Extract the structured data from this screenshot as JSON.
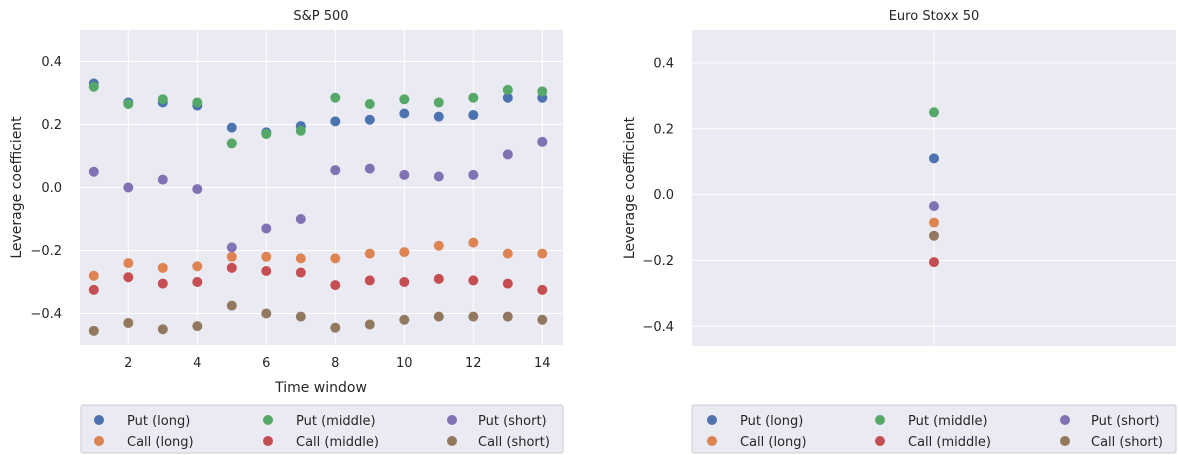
{
  "chart_data": [
    {
      "type": "scatter",
      "title": "S&P 500",
      "xlabel": "Time window",
      "ylabel": "Leverage coefficient",
      "xlim": [
        0.6,
        14.6
      ],
      "ylim": [
        -0.5,
        0.5
      ],
      "xticks": [
        2,
        4,
        6,
        8,
        10,
        12,
        14
      ],
      "yticks": [
        -0.4,
        -0.2,
        0.0,
        0.2,
        0.4
      ],
      "ytick_labels": [
        "−0.4",
        "−0.2",
        "0.0",
        "0.2",
        "0.4"
      ],
      "grid": true,
      "legend_position": "below",
      "legend_columns": 3,
      "x": [
        1,
        2,
        3,
        4,
        5,
        6,
        7,
        8,
        9,
        10,
        11,
        12,
        13,
        14
      ],
      "series": [
        {
          "name": "Put (long)",
          "color": "#4c72b0",
          "values": [
            0.33,
            0.27,
            0.27,
            0.26,
            0.19,
            0.175,
            0.195,
            0.21,
            0.215,
            0.235,
            0.225,
            0.23,
            0.285,
            0.285
          ]
        },
        {
          "name": "Call (long)",
          "color": "#dd8452",
          "values": [
            -0.28,
            -0.24,
            -0.255,
            -0.25,
            -0.22,
            -0.22,
            -0.225,
            -0.225,
            -0.21,
            -0.205,
            -0.185,
            -0.175,
            -0.21,
            -0.21
          ]
        },
        {
          "name": "Put (middle)",
          "color": "#55a868",
          "values": [
            0.32,
            0.265,
            0.28,
            0.27,
            0.14,
            0.17,
            0.18,
            0.285,
            0.265,
            0.28,
            0.27,
            0.285,
            0.31,
            0.305
          ]
        },
        {
          "name": "Call (middle)",
          "color": "#c44e52",
          "values": [
            -0.325,
            -0.285,
            -0.305,
            -0.3,
            -0.255,
            -0.265,
            -0.27,
            -0.31,
            -0.295,
            -0.3,
            -0.29,
            -0.295,
            -0.305,
            -0.325
          ]
        },
        {
          "name": "Put (short)",
          "color": "#8172b3",
          "values": [
            0.05,
            0.0,
            0.025,
            -0.005,
            -0.19,
            -0.13,
            -0.1,
            0.055,
            0.06,
            0.04,
            0.035,
            0.04,
            0.105,
            0.145
          ]
        },
        {
          "name": "Call (short)",
          "color": "#937860",
          "values": [
            -0.455,
            -0.43,
            -0.45,
            -0.44,
            -0.375,
            -0.4,
            -0.41,
            -0.445,
            -0.435,
            -0.42,
            -0.41,
            -0.41,
            -0.41,
            -0.42
          ]
        }
      ]
    },
    {
      "type": "scatter",
      "title": "Euro Stoxx 50",
      "xlabel": "",
      "ylabel": "Leverage coefficient",
      "ylim": [
        -0.46,
        0.5
      ],
      "yticks": [
        -0.4,
        -0.2,
        0.0,
        0.2,
        0.4
      ],
      "ytick_labels": [
        "−0.4",
        "−0.2",
        "0.0",
        "0.2",
        "0.4"
      ],
      "xticks": [],
      "grid": true,
      "legend_position": "below",
      "legend_columns": 3,
      "x": [
        0
      ],
      "series": [
        {
          "name": "Put (long)",
          "color": "#4c72b0",
          "values": [
            0.11
          ]
        },
        {
          "name": "Call (long)",
          "color": "#dd8452",
          "values": [
            -0.085
          ]
        },
        {
          "name": "Put (middle)",
          "color": "#55a868",
          "values": [
            0.25
          ]
        },
        {
          "name": "Call (middle)",
          "color": "#c44e52",
          "values": [
            -0.205
          ]
        },
        {
          "name": "Put (short)",
          "color": "#8172b3",
          "values": [
            -0.035
          ]
        },
        {
          "name": "Call (short)",
          "color": "#937860",
          "values": [
            -0.125
          ]
        }
      ]
    }
  ],
  "style": {
    "plot_background": "#eaeaf2",
    "grid_color": "#ffffff",
    "text_color": "#262626",
    "legend_border": "#cccccc"
  }
}
